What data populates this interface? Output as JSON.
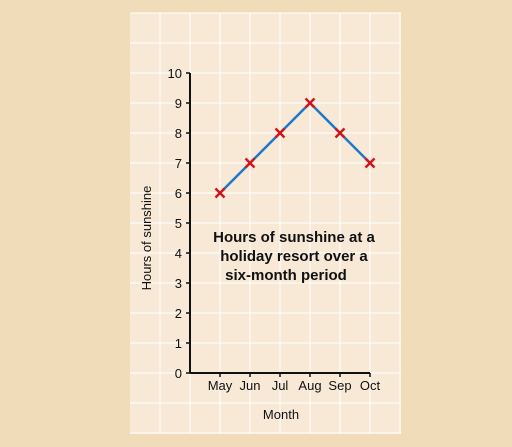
{
  "chart_data": {
    "type": "line",
    "title": "",
    "annotation_lines": [
      "Hours of sunshine at a",
      "holiday resort over a",
      "six-month period"
    ],
    "xlabel": "Month",
    "ylabel": "Hours of sunshine",
    "categories": [
      "May",
      "Jun",
      "Jul",
      "Aug",
      "Sep",
      "Oct"
    ],
    "values": [
      6,
      7,
      8,
      9,
      8,
      7
    ],
    "ylim": [
      0,
      10
    ],
    "yticks": [
      "0",
      "1",
      "2",
      "3",
      "4",
      "5",
      "6",
      "7",
      "8",
      "9",
      "10"
    ],
    "grid": true,
    "line_color": "#1f78c8",
    "marker_color": "#d4141c",
    "grid_color": "#ffffff",
    "background_color": "#f0dcb9",
    "panel_color": "#f7e9d6"
  }
}
